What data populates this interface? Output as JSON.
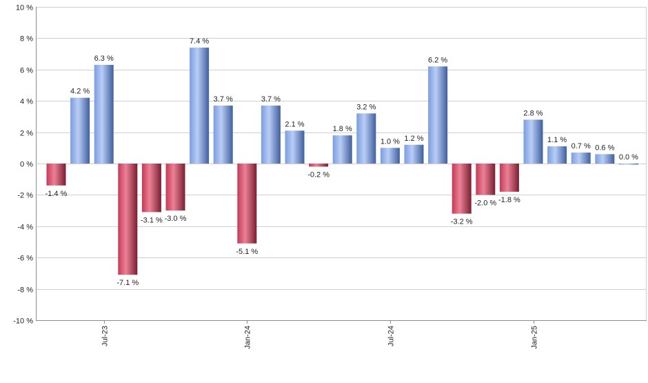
{
  "chart_data": {
    "type": "bar",
    "title": "",
    "xlabel": "",
    "ylabel": "",
    "ylim": [
      -10,
      10
    ],
    "y_tick_step": 2,
    "y_tick_suffix": " %",
    "value_suffix": " %",
    "grid": true,
    "colors": {
      "positive": "#7a9de0",
      "positive_light": "#b9cdf6",
      "positive_dark": "#3f5f9e",
      "negative": "#c43a56",
      "negative_light": "#ec8196",
      "negative_dark": "#7a1e31"
    },
    "x_ticks": [
      {
        "label": "Jul-23",
        "index": 2
      },
      {
        "label": "Jan-24",
        "index": 8
      },
      {
        "label": "Jul-24",
        "index": 14
      },
      {
        "label": "Jan-25",
        "index": 20
      }
    ],
    "values": [
      -1.4,
      4.2,
      6.3,
      -7.1,
      -3.1,
      -3.0,
      7.4,
      3.7,
      -5.1,
      3.7,
      2.1,
      -0.2,
      1.8,
      3.2,
      1.0,
      1.2,
      6.2,
      -3.2,
      -2.0,
      -1.8,
      2.8,
      1.1,
      0.7,
      0.6,
      0.0
    ],
    "data_labels": [
      "-1.4 %",
      "4.2 %",
      "6.3 %",
      "-7.1 %",
      "-3.1 %",
      "-3.0 %",
      "7.4 %",
      "3.7 %",
      "-5.1 %",
      "3.7 %",
      "2.1 %",
      "-0.2 %",
      "1.8 %",
      "3.2 %",
      "1.0 %",
      "1.2 %",
      "6.2 %",
      "-3.2 %",
      "-2.0 %",
      "-1.8 %",
      "2.8 %",
      "1.1 %",
      "0.7 %",
      "0.6 %",
      "0.0 %"
    ],
    "legend": "none"
  }
}
